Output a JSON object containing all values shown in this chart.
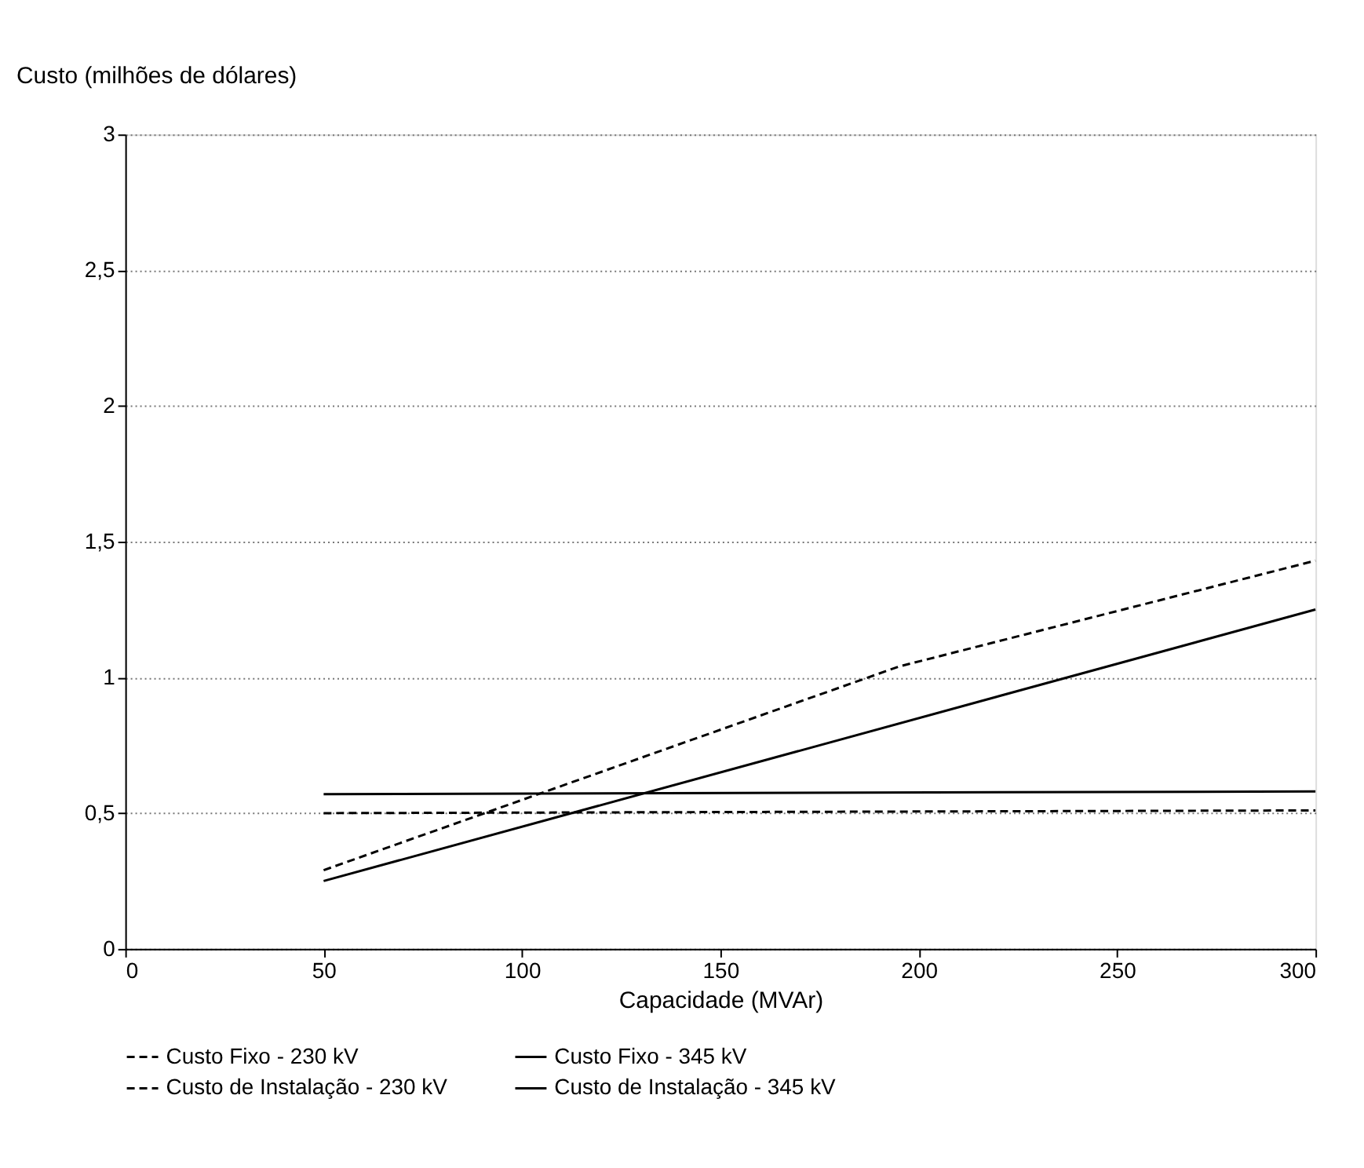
{
  "chart_data": {
    "type": "line",
    "xlabel": "Capacidade (MVAr)",
    "ylabel": "Custo (milhões de dólares)",
    "xlim": [
      0,
      300
    ],
    "xticks": [
      0,
      50,
      100,
      150,
      200,
      250,
      300
    ],
    "ylim": [
      0,
      3
    ],
    "yticks": [
      0,
      {
        "value": 0.5,
        "label": "0,5"
      },
      1,
      {
        "value": 1.5,
        "label": "1,5"
      },
      2,
      {
        "value": 2.5,
        "label": "2,5"
      },
      3
    ],
    "grid": "y",
    "legend": "bottom",
    "series": [
      {
        "name": "Custo Fixo - 230 kV",
        "color": "#000000",
        "line_style": "dashed",
        "x": [
          50,
          300
        ],
        "values": [
          0.5,
          0.51
        ]
      },
      {
        "name": "Custo Fixo - 345 kV",
        "color": "#000000",
        "line_style": "solid",
        "x": [
          50,
          300
        ],
        "values": [
          0.57,
          0.58
        ]
      },
      {
        "name": "Custo de Instalação - 230 kV",
        "color": "#000000",
        "line_style": "dashed",
        "x": [
          50,
          195,
          300
        ],
        "values": [
          0.29,
          1.04,
          1.43
        ]
      },
      {
        "name": "Custo de Instalação - 345 kV",
        "color": "#000000",
        "line_style": "solid",
        "x": [
          50,
          300
        ],
        "values": [
          0.25,
          1.25
        ]
      }
    ]
  }
}
